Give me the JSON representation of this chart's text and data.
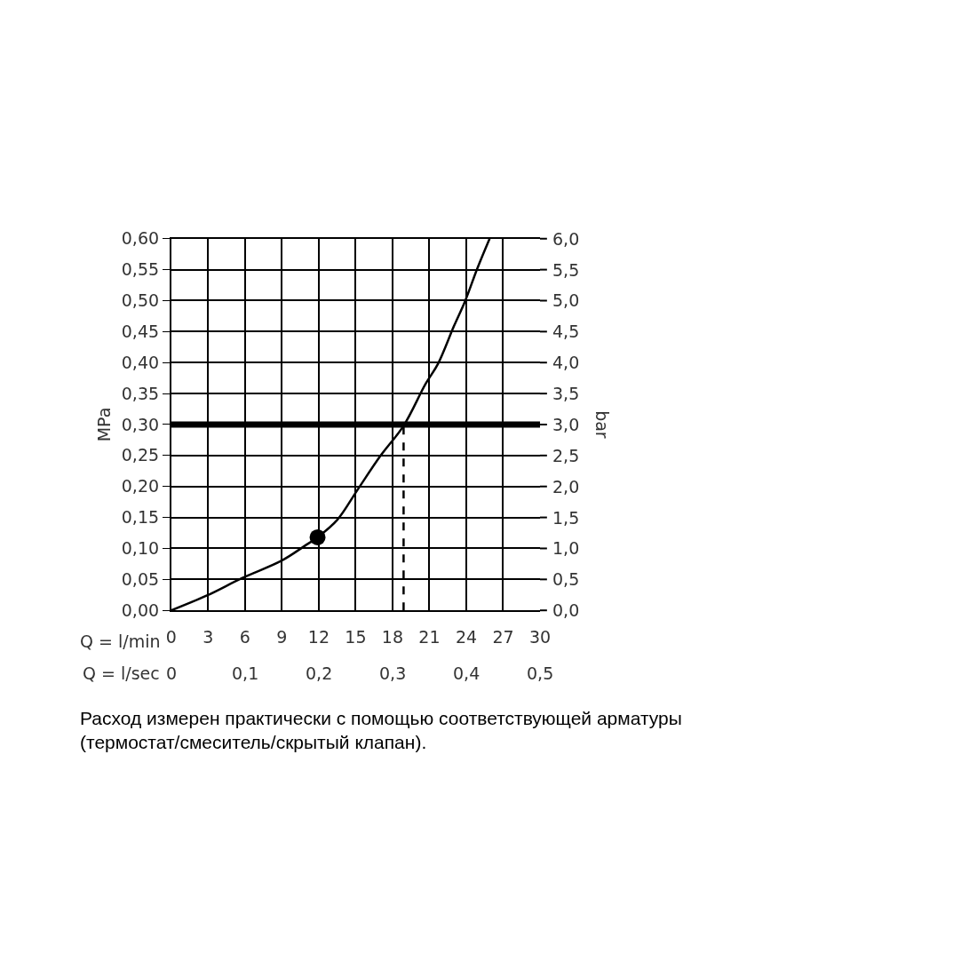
{
  "chart_data": {
    "type": "line",
    "xlabel": "Q = l/min",
    "x2label": "Q = l/sec",
    "ylabel": "MPa",
    "y2label": "bar",
    "xlim": [
      0,
      30
    ],
    "xticks": [
      0,
      3,
      6,
      9,
      12,
      15,
      18,
      21,
      24,
      27,
      30
    ],
    "x2lim": [
      0,
      0.5
    ],
    "x2ticks": [
      0,
      {
        "value": 0.1,
        "label": "0,1"
      },
      {
        "value": 0.2,
        "label": "0,2"
      },
      {
        "value": 0.3,
        "label": "0,3"
      },
      {
        "value": 0.4,
        "label": "0,4"
      },
      {
        "value": 0.5,
        "label": "0,5"
      }
    ],
    "ylim": [
      0,
      0.6
    ],
    "yticks": [
      {
        "value": 0,
        "label": "0,00"
      },
      {
        "value": 0.05,
        "label": "0,05"
      },
      {
        "value": 0.1,
        "label": "0,10"
      },
      {
        "value": 0.15,
        "label": "0,15"
      },
      {
        "value": 0.2,
        "label": "0,20"
      },
      {
        "value": 0.25,
        "label": "0,25"
      },
      {
        "value": 0.3,
        "label": "0,30"
      },
      {
        "value": 0.35,
        "label": "0,35"
      },
      {
        "value": 0.4,
        "label": "0,40"
      },
      {
        "value": 0.45,
        "label": "0,45"
      },
      {
        "value": 0.5,
        "label": "0,50"
      },
      {
        "value": 0.55,
        "label": "0,55"
      },
      {
        "value": 0.6,
        "label": "0,60"
      }
    ],
    "y2lim": [
      0,
      6
    ],
    "y2ticks": [
      {
        "value": 0,
        "label": "0,0"
      },
      {
        "value": 0.5,
        "label": "0,5"
      },
      {
        "value": 1,
        "label": "1,0"
      },
      {
        "value": 1.5,
        "label": "1,5"
      },
      {
        "value": 2,
        "label": "2,0"
      },
      {
        "value": 2.5,
        "label": "2,5"
      },
      {
        "value": 3,
        "label": "3,0"
      },
      {
        "value": 3.5,
        "label": "3,5"
      },
      {
        "value": 4,
        "label": "4,0"
      },
      {
        "value": 4.5,
        "label": "4,5"
      },
      {
        "value": 5,
        "label": "5,0"
      },
      {
        "value": 5.5,
        "label": "5,5"
      },
      {
        "value": 6,
        "label": "6,0"
      }
    ],
    "grid": true,
    "series": [
      {
        "color": "#000000",
        "marker": "none",
        "line_style": "solid",
        "x": [
          0,
          2.9,
          5.75,
          8.95,
          10.85,
          11.9,
          13.5,
          15.1,
          17.0,
          18.9,
          20.7,
          21.7,
          23.0,
          23.9,
          24.9,
          25.9
        ],
        "values": [
          0,
          0.024,
          0.052,
          0.08,
          0.104,
          0.118,
          0.146,
          0.193,
          0.249,
          0.298,
          0.366,
          0.398,
          0.459,
          0.499,
          0.552,
          0.6
        ]
      },
      {
        "type": "line",
        "color": "#000000",
        "marker": "none",
        "line_style": "dashed",
        "x": [
          18.9,
          18.9
        ],
        "values": [
          0,
          0.3
        ]
      },
      {
        "type": "scatter",
        "color": "#000000",
        "marker": "circle",
        "x": [
          11.9
        ],
        "values": [
          0.118
        ]
      }
    ],
    "ref_lines": [
      {
        "axis": "y",
        "value": 0.3,
        "color": "#000000",
        "line_style": "solid"
      }
    ],
    "annotations": [
      "Расход измерен практически с помощью соответствующей арматуры (термостат/смеситель/скрытый клапан)."
    ]
  }
}
